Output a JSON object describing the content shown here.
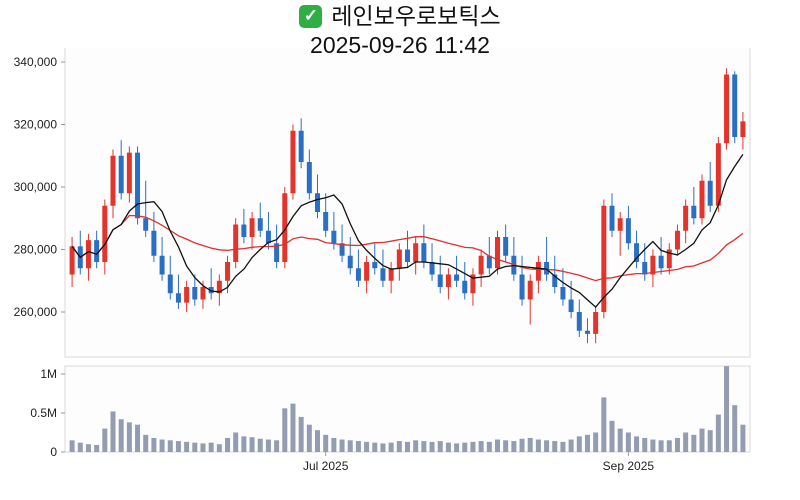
{
  "header": {
    "check_icon": "✓",
    "title": "레인보우로보틱스",
    "timestamp": "2025-09-26 11:42"
  },
  "colors": {
    "up": "#e2342b",
    "down": "#2a6fc4",
    "ma_short": "#111111",
    "ma_long": "#e03030",
    "volume": "#949cb2",
    "axis_text": "#222222",
    "tick": "#999999",
    "border": "#d9d9d9",
    "pane_bg": "#fdfdfd",
    "check_bg": "#2fae43"
  },
  "chart_data": {
    "type": "candlestick",
    "title": "레인보우로보틱스",
    "subtitle": "2025-09-26 11:42",
    "legend_position": "none",
    "grid": false,
    "y_axis": {
      "ticks": [
        260000,
        280000,
        300000,
        320000,
        340000
      ],
      "range": [
        245600,
        344500
      ]
    },
    "volume_axis": {
      "ticks": [
        {
          "label": "0",
          "value": 0
        },
        {
          "label": "0.5M",
          "value": 500000
        },
        {
          "label": "1M",
          "value": 1000000
        }
      ],
      "range": [
        0,
        1150000
      ]
    },
    "x_ticks": [
      {
        "index": 31,
        "label": "Jul 2025"
      },
      {
        "index": 68,
        "label": "Sep 2025"
      }
    ],
    "ma_windows": {
      "short": 7,
      "long": 24
    },
    "ohlcv_columns": [
      "open",
      "high",
      "low",
      "close",
      "volume"
    ],
    "ohlcv": [
      [
        272000,
        284000,
        268000,
        281000,
        150000
      ],
      [
        281000,
        286000,
        272000,
        274000,
        120000
      ],
      [
        274000,
        285000,
        270000,
        283000,
        100000
      ],
      [
        283000,
        286000,
        274000,
        276000,
        90000
      ],
      [
        276000,
        296000,
        272000,
        294000,
        300000
      ],
      [
        294000,
        312000,
        290000,
        310000,
        520000
      ],
      [
        310000,
        315000,
        296000,
        298000,
        420000
      ],
      [
        298000,
        313000,
        295000,
        311000,
        380000
      ],
      [
        311000,
        313000,
        288000,
        290000,
        350000
      ],
      [
        290000,
        302000,
        284000,
        286000,
        220000
      ],
      [
        286000,
        292000,
        276000,
        278000,
        180000
      ],
      [
        278000,
        284000,
        270000,
        272000,
        160000
      ],
      [
        272000,
        278000,
        264000,
        266000,
        150000
      ],
      [
        266000,
        272000,
        261000,
        263000,
        140000
      ],
      [
        263000,
        270000,
        260000,
        268000,
        130000
      ],
      [
        268000,
        272000,
        262000,
        264000,
        120000
      ],
      [
        264000,
        270000,
        261000,
        268000,
        110000
      ],
      [
        268000,
        274000,
        264000,
        266000,
        120000
      ],
      [
        266000,
        272000,
        262000,
        270000,
        100000
      ],
      [
        270000,
        278000,
        266000,
        276000,
        180000
      ],
      [
        276000,
        290000,
        274000,
        288000,
        250000
      ],
      [
        288000,
        293000,
        282000,
        284000,
        200000
      ],
      [
        284000,
        292000,
        280000,
        290000,
        190000
      ],
      [
        290000,
        295000,
        284000,
        286000,
        170000
      ],
      [
        286000,
        292000,
        280000,
        282000,
        160000
      ],
      [
        282000,
        288000,
        274000,
        276000,
        150000
      ],
      [
        276000,
        300000,
        274000,
        298000,
        560000
      ],
      [
        298000,
        320000,
        296000,
        318000,
        620000
      ],
      [
        318000,
        322000,
        306000,
        308000,
        450000
      ],
      [
        308000,
        312000,
        296000,
        298000,
        350000
      ],
      [
        298000,
        304000,
        290000,
        292000,
        280000
      ],
      [
        292000,
        298000,
        284000,
        286000,
        220000
      ],
      [
        286000,
        292000,
        280000,
        282000,
        180000
      ],
      [
        282000,
        288000,
        276000,
        278000,
        160000
      ],
      [
        278000,
        284000,
        272000,
        274000,
        150000
      ],
      [
        274000,
        280000,
        268000,
        270000,
        140000
      ],
      [
        270000,
        278000,
        266000,
        276000,
        130000
      ],
      [
        276000,
        282000,
        272000,
        274000,
        120000
      ],
      [
        274000,
        280000,
        268000,
        270000,
        110000
      ],
      [
        270000,
        276000,
        266000,
        274000,
        120000
      ],
      [
        274000,
        282000,
        270000,
        280000,
        140000
      ],
      [
        280000,
        286000,
        274000,
        276000,
        130000
      ],
      [
        276000,
        284000,
        272000,
        282000,
        150000
      ],
      [
        282000,
        288000,
        274000,
        276000,
        140000
      ],
      [
        276000,
        282000,
        270000,
        272000,
        130000
      ],
      [
        272000,
        278000,
        266000,
        268000,
        140000
      ],
      [
        268000,
        274000,
        264000,
        272000,
        120000
      ],
      [
        272000,
        278000,
        268000,
        270000,
        110000
      ],
      [
        270000,
        276000,
        264000,
        266000,
        120000
      ],
      [
        266000,
        274000,
        262000,
        272000,
        130000
      ],
      [
        272000,
        280000,
        268000,
        278000,
        140000
      ],
      [
        278000,
        284000,
        272000,
        274000,
        130000
      ],
      [
        274000,
        286000,
        272000,
        284000,
        160000
      ],
      [
        284000,
        288000,
        276000,
        278000,
        150000
      ],
      [
        278000,
        284000,
        270000,
        272000,
        140000
      ],
      [
        272000,
        278000,
        262000,
        264000,
        170000
      ],
      [
        264000,
        272000,
        256000,
        270000,
        180000
      ],
      [
        270000,
        278000,
        266000,
        276000,
        160000
      ],
      [
        276000,
        284000,
        270000,
        272000,
        150000
      ],
      [
        272000,
        278000,
        266000,
        268000,
        140000
      ],
      [
        268000,
        274000,
        262000,
        264000,
        130000
      ],
      [
        264000,
        270000,
        258000,
        260000,
        160000
      ],
      [
        260000,
        264000,
        252000,
        254000,
        200000
      ],
      [
        254000,
        258000,
        250000,
        253000,
        220000
      ],
      [
        253000,
        262000,
        250000,
        260000,
        250000
      ],
      [
        260000,
        296000,
        258000,
        294000,
        700000
      ],
      [
        294000,
        298000,
        284000,
        286000,
        400000
      ],
      [
        286000,
        292000,
        278000,
        290000,
        300000
      ],
      [
        290000,
        294000,
        280000,
        282000,
        250000
      ],
      [
        282000,
        286000,
        274000,
        276000,
        200000
      ],
      [
        276000,
        282000,
        270000,
        272000,
        180000
      ],
      [
        272000,
        280000,
        268000,
        278000,
        160000
      ],
      [
        278000,
        284000,
        272000,
        274000,
        150000
      ],
      [
        274000,
        282000,
        272000,
        280000,
        150000
      ],
      [
        280000,
        288000,
        278000,
        286000,
        180000
      ],
      [
        286000,
        296000,
        282000,
        294000,
        250000
      ],
      [
        294000,
        300000,
        288000,
        290000,
        220000
      ],
      [
        290000,
        304000,
        288000,
        302000,
        300000
      ],
      [
        302000,
        308000,
        292000,
        294000,
        280000
      ],
      [
        294000,
        316000,
        292000,
        314000,
        480000
      ],
      [
        314000,
        338000,
        312000,
        336000,
        1100000
      ],
      [
        336000,
        337000,
        314000,
        316000,
        600000
      ],
      [
        316000,
        324000,
        312000,
        321000,
        350000
      ]
    ]
  }
}
